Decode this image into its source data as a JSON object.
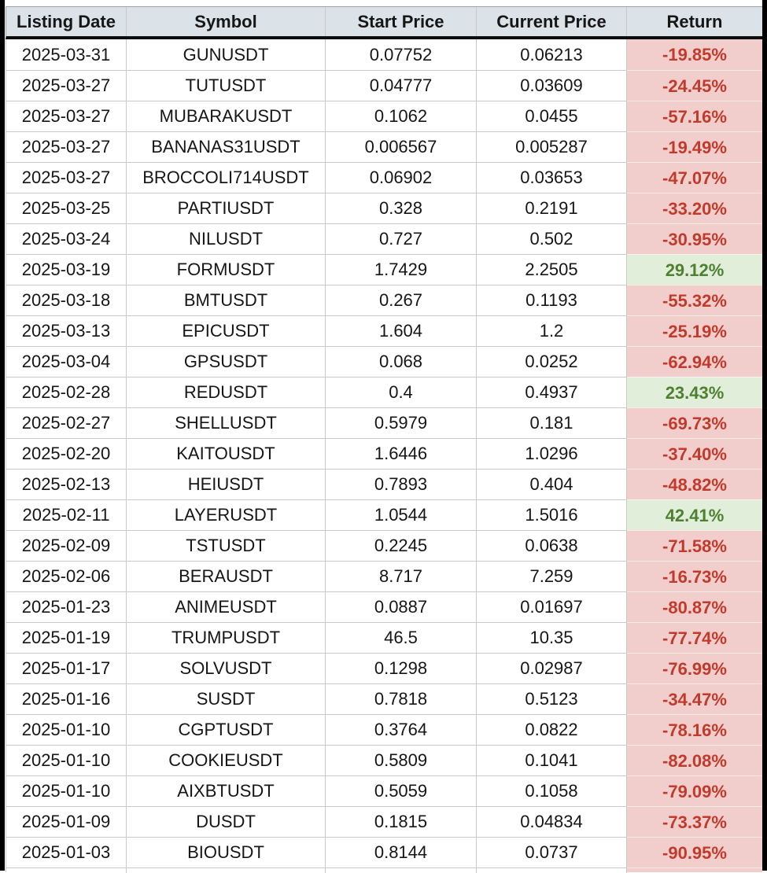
{
  "colors": {
    "header_bg": "#dbe2e8",
    "grid_line": "#c9c9c9",
    "text": "#161616",
    "negative_bg": "#f1cecb",
    "negative_text": "#c13a2c",
    "positive_bg": "#e1eeda",
    "positive_text": "#4e8032"
  },
  "chart_data": {
    "type": "table",
    "columns": [
      "Listing Date",
      "Symbol",
      "Start Price",
      "Current Price",
      "Return"
    ],
    "rows": [
      [
        "2025-03-31",
        "GUNUSDT",
        "0.07752",
        "0.06213",
        "-19.85%"
      ],
      [
        "2025-03-27",
        "TUTUSDT",
        "0.04777",
        "0.03609",
        "-24.45%"
      ],
      [
        "2025-03-27",
        "MUBARAKUSDT",
        "0.1062",
        "0.0455",
        "-57.16%"
      ],
      [
        "2025-03-27",
        "BANANAS31USDT",
        "0.006567",
        "0.005287",
        "-19.49%"
      ],
      [
        "2025-03-27",
        "BROCCOLI714USDT",
        "0.06902",
        "0.03653",
        "-47.07%"
      ],
      [
        "2025-03-25",
        "PARTIUSDT",
        "0.328",
        "0.2191",
        "-33.20%"
      ],
      [
        "2025-03-24",
        "NILUSDT",
        "0.727",
        "0.502",
        "-30.95%"
      ],
      [
        "2025-03-19",
        "FORMUSDT",
        "1.7429",
        "2.2505",
        "29.12%"
      ],
      [
        "2025-03-18",
        "BMTUSDT",
        "0.267",
        "0.1193",
        "-55.32%"
      ],
      [
        "2025-03-13",
        "EPICUSDT",
        "1.604",
        "1.2",
        "-25.19%"
      ],
      [
        "2025-03-04",
        "GPSUSDT",
        "0.068",
        "0.0252",
        "-62.94%"
      ],
      [
        "2025-02-28",
        "REDUSDT",
        "0.4",
        "0.4937",
        "23.43%"
      ],
      [
        "2025-02-27",
        "SHELLUSDT",
        "0.5979",
        "0.181",
        "-69.73%"
      ],
      [
        "2025-02-20",
        "KAITOUSDT",
        "1.6446",
        "1.0296",
        "-37.40%"
      ],
      [
        "2025-02-13",
        "HEIUSDT",
        "0.7893",
        "0.404",
        "-48.82%"
      ],
      [
        "2025-02-11",
        "LAYERUSDT",
        "1.0544",
        "1.5016",
        "42.41%"
      ],
      [
        "2025-02-09",
        "TSTUSDT",
        "0.2245",
        "0.0638",
        "-71.58%"
      ],
      [
        "2025-02-06",
        "BERAUSDT",
        "8.717",
        "7.259",
        "-16.73%"
      ],
      [
        "2025-01-23",
        "ANIMEUSDT",
        "0.0887",
        "0.01697",
        "-80.87%"
      ],
      [
        "2025-01-19",
        "TRUMPUSDT",
        "46.5",
        "10.35",
        "-77.74%"
      ],
      [
        "2025-01-17",
        "SOLVUSDT",
        "0.1298",
        "0.02987",
        "-76.99%"
      ],
      [
        "2025-01-16",
        "SUSDT",
        "0.7818",
        "0.5123",
        "-34.47%"
      ],
      [
        "2025-01-10",
        "CGPTUSDT",
        "0.3764",
        "0.0822",
        "-78.16%"
      ],
      [
        "2025-01-10",
        "COOKIEUSDT",
        "0.5809",
        "0.1041",
        "-82.08%"
      ],
      [
        "2025-01-10",
        "AIXBTUSDT",
        "0.5059",
        "0.1058",
        "-79.09%"
      ],
      [
        "2025-01-09",
        "DUSDT",
        "0.1815",
        "0.04834",
        "-73.37%"
      ],
      [
        "2025-01-03",
        "BIOUSDT",
        "0.8144",
        "0.0737",
        "-90.95%"
      ]
    ]
  }
}
